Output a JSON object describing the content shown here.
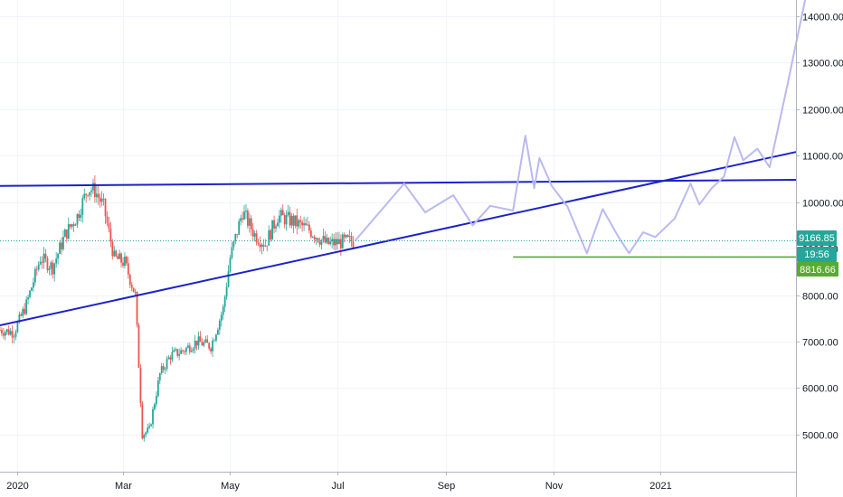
{
  "chart_data": {
    "type": "candlestick",
    "y_axis": {
      "ticks": [
        "5000.00",
        "6000.00",
        "7000.00",
        "8000.00",
        "9000.00",
        "10000.00",
        "11000.00",
        "12000.00",
        "13000.00",
        "14000.00"
      ],
      "ylim": [
        4200,
        14350
      ],
      "grid": true,
      "position": "right"
    },
    "x_axis": {
      "ticks": [
        {
          "date": "2020-01-01",
          "label": "2020"
        },
        {
          "date": "2020-03-01",
          "label": "Mar"
        },
        {
          "date": "2020-05-01",
          "label": "May"
        },
        {
          "date": "2020-07-01",
          "label": "Jul"
        },
        {
          "date": "2020-09-01",
          "label": "Sep"
        },
        {
          "date": "2020-11-01",
          "label": "Nov"
        },
        {
          "date": "2021-01-01",
          "label": "2021"
        }
      ],
      "xlim": [
        "2019-12-22",
        "2021-03-19"
      ],
      "grid": true
    },
    "price_badges": {
      "last_price": "9166.85",
      "countdown": "19:56",
      "level": "8816.66"
    },
    "colors": {
      "up": "#26a69a",
      "down": "#ef5350",
      "trendline": "#1c22c8",
      "projection": "#b9b9f2",
      "support_line": "#5ba832",
      "price_line": "#26a69a",
      "level_badge": "#5ba832"
    },
    "candles_ohlc_path": [
      [
        "2019-12-22",
        7250
      ],
      [
        "2019-12-30",
        7200
      ],
      [
        "2020-01-06",
        7800
      ],
      [
        "2020-01-14",
        8800
      ],
      [
        "2020-01-21",
        8600
      ],
      [
        "2020-01-28",
        9300
      ],
      [
        "2020-02-04",
        9700
      ],
      [
        "2020-02-10",
        10300
      ],
      [
        "2020-02-14",
        10250
      ],
      [
        "2020-02-19",
        9900
      ],
      [
        "2020-02-25",
        8800
      ],
      [
        "2020-03-02",
        8700
      ],
      [
        "2020-03-08",
        8000
      ],
      [
        "2020-03-12",
        5000
      ],
      [
        "2020-03-16",
        5100
      ],
      [
        "2020-03-22",
        6300
      ],
      [
        "2020-03-28",
        6700
      ],
      [
        "2020-04-04",
        6800
      ],
      [
        "2020-04-12",
        7000
      ],
      [
        "2020-04-20",
        6900
      ],
      [
        "2020-04-27",
        7700
      ],
      [
        "2020-05-01",
        8800
      ],
      [
        "2020-05-08",
        9800
      ],
      [
        "2020-05-15",
        9300
      ],
      [
        "2020-05-21",
        9100
      ],
      [
        "2020-05-28",
        9700
      ],
      [
        "2020-06-05",
        9600
      ],
      [
        "2020-06-15",
        9400
      ],
      [
        "2020-06-25",
        9100
      ],
      [
        "2020-07-05",
        9150
      ],
      [
        "2020-07-11",
        9166
      ]
    ],
    "trendlines": [
      {
        "name": "",
        "points": [
          [
            "2019-12-22",
            10350
          ],
          [
            "2021-03-19",
            10480
          ]
        ]
      },
      {
        "name": "",
        "points": [
          [
            "2019-12-22",
            7350
          ],
          [
            "2021-03-19",
            11080
          ]
        ]
      }
    ],
    "support_level": {
      "from": "2020-10-09",
      "to": "2021-03-19",
      "value": 8820
    },
    "projection_path": [
      [
        "2020-07-11",
        9166
      ],
      [
        "2020-08-08",
        10400
      ],
      [
        "2020-08-20",
        9780
      ],
      [
        "2020-09-05",
        10150
      ],
      [
        "2020-09-16",
        9500
      ],
      [
        "2020-09-26",
        9920
      ],
      [
        "2020-10-09",
        9820
      ],
      [
        "2020-10-16",
        11430
      ],
      [
        "2020-10-21",
        10300
      ],
      [
        "2020-10-24",
        10950
      ],
      [
        "2020-10-31",
        10350
      ],
      [
        "2020-11-09",
        9900
      ],
      [
        "2020-11-20",
        8900
      ],
      [
        "2020-11-29",
        9850
      ],
      [
        "2020-12-08",
        9250
      ],
      [
        "2020-12-14",
        8900
      ],
      [
        "2020-12-22",
        9350
      ],
      [
        "2020-12-29",
        9250
      ],
      [
        "2021-01-09",
        9650
      ],
      [
        "2021-01-18",
        10400
      ],
      [
        "2021-01-23",
        9950
      ],
      [
        "2021-01-30",
        10300
      ],
      [
        "2021-02-06",
        10550
      ],
      [
        "2021-02-12",
        11400
      ],
      [
        "2021-02-17",
        10900
      ],
      [
        "2021-02-25",
        11150
      ],
      [
        "2021-03-04",
        10750
      ],
      [
        "2021-03-14",
        12500
      ],
      [
        "2021-03-25",
        14500
      ]
    ]
  }
}
